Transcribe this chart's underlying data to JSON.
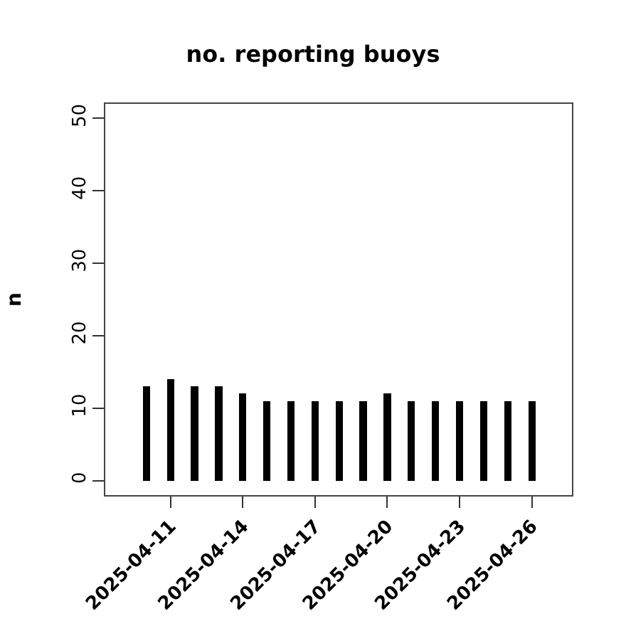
{
  "chart_data": {
    "type": "bar",
    "title": "no. reporting buoys",
    "ylabel": "n",
    "x": [
      "2025-04-10",
      "2025-04-11",
      "2025-04-12",
      "2025-04-13",
      "2025-04-14",
      "2025-04-15",
      "2025-04-16",
      "2025-04-17",
      "2025-04-18",
      "2025-04-19",
      "2025-04-20",
      "2025-04-21",
      "2025-04-22",
      "2025-04-23",
      "2025-04-24",
      "2025-04-25",
      "2025-04-26"
    ],
    "values": [
      13,
      14,
      13,
      13,
      12,
      11,
      11,
      11,
      11,
      11,
      12,
      11,
      11,
      11,
      11,
      11,
      11
    ],
    "color": "#000000",
    "xlim": [
      "2025-04-08T07:00",
      "2025-04-27T16:00"
    ],
    "xticks": [
      {
        "value": "2025-04-11",
        "label": "2025-04-11"
      },
      {
        "value": "2025-04-14",
        "label": "2025-04-14"
      },
      {
        "value": "2025-04-17",
        "label": "2025-04-17"
      },
      {
        "value": "2025-04-20",
        "label": "2025-04-20"
      },
      {
        "value": "2025-04-23",
        "label": "2025-04-23"
      },
      {
        "value": "2025-04-26",
        "label": "2025-04-26"
      }
    ],
    "ylim": [
      -2,
      52
    ],
    "yticks": [
      0,
      10,
      20,
      30,
      40,
      50
    ]
  }
}
